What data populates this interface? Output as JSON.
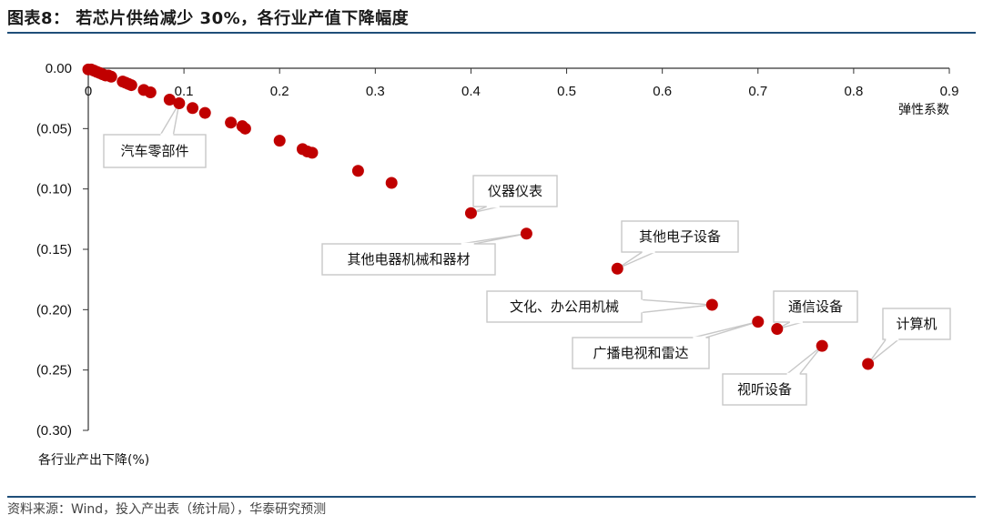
{
  "header": {
    "title": "图表8：  若芯片供给减少 30%，各行业产值下降幅度"
  },
  "footer": {
    "source": "资料来源：Wind，投入产出表（统计局），华泰研究预测"
  },
  "chart_data": {
    "type": "scatter",
    "title": "",
    "xlabel": "弹性系数",
    "ylabel": "各行业产出下降(%)",
    "xlim": [
      0,
      0.9
    ],
    "ylim": [
      -0.3,
      0.0
    ],
    "x_ticks": [
      "0",
      "0.1",
      "0.2",
      "0.3",
      "0.4",
      "0.5",
      "0.6",
      "0.7",
      "0.8",
      "0.9"
    ],
    "y_ticks": [
      "0.00",
      "(0.05)",
      "(0.10)",
      "(0.15)",
      "(0.20)",
      "(0.25)",
      "(0.30)"
    ],
    "grid": false,
    "marker_color": "#c00000",
    "points": [
      {
        "x": 0.0,
        "y": -0.001
      },
      {
        "x": 0.003,
        "y": -0.001
      },
      {
        "x": 0.006,
        "y": -0.002
      },
      {
        "x": 0.009,
        "y": -0.003
      },
      {
        "x": 0.012,
        "y": -0.004
      },
      {
        "x": 0.015,
        "y": -0.005
      },
      {
        "x": 0.018,
        "y": -0.006
      },
      {
        "x": 0.021,
        "y": -0.006
      },
      {
        "x": 0.024,
        "y": -0.007
      },
      {
        "x": 0.036,
        "y": -0.011
      },
      {
        "x": 0.039,
        "y": -0.012
      },
      {
        "x": 0.042,
        "y": -0.013
      },
      {
        "x": 0.045,
        "y": -0.014
      },
      {
        "x": 0.058,
        "y": -0.018
      },
      {
        "x": 0.065,
        "y": -0.02
      },
      {
        "x": 0.085,
        "y": -0.026
      },
      {
        "x": 0.095,
        "y": -0.029
      },
      {
        "x": 0.109,
        "y": -0.033
      },
      {
        "x": 0.122,
        "y": -0.037
      },
      {
        "x": 0.149,
        "y": -0.045
      },
      {
        "x": 0.161,
        "y": -0.048
      },
      {
        "x": 0.164,
        "y": -0.05
      },
      {
        "x": 0.2,
        "y": -0.06
      },
      {
        "x": 0.224,
        "y": -0.067
      },
      {
        "x": 0.229,
        "y": -0.069
      },
      {
        "x": 0.234,
        "y": -0.07
      },
      {
        "x": 0.282,
        "y": -0.085
      },
      {
        "x": 0.317,
        "y": -0.095
      },
      {
        "x": 0.4,
        "y": -0.12
      },
      {
        "x": 0.458,
        "y": -0.137
      },
      {
        "x": 0.553,
        "y": -0.166
      },
      {
        "x": 0.652,
        "y": -0.196
      },
      {
        "x": 0.7,
        "y": -0.21
      },
      {
        "x": 0.72,
        "y": -0.216
      },
      {
        "x": 0.767,
        "y": -0.23
      },
      {
        "x": 0.815,
        "y": -0.245
      }
    ],
    "annotations": [
      {
        "text": "汽车零部件",
        "x": 0.095,
        "y": -0.029
      },
      {
        "text": "仪器仪表",
        "x": 0.4,
        "y": -0.12
      },
      {
        "text": "其他电器机械和器材",
        "x": 0.458,
        "y": -0.137
      },
      {
        "text": "其他电子设备",
        "x": 0.553,
        "y": -0.166
      },
      {
        "text": "文化、办公用机械",
        "x": 0.652,
        "y": -0.196
      },
      {
        "text": "通信设备",
        "x": 0.72,
        "y": -0.216
      },
      {
        "text": "广播电视和雷达",
        "x": 0.7,
        "y": -0.21
      },
      {
        "text": "视听设备",
        "x": 0.767,
        "y": -0.23
      },
      {
        "text": "计算机",
        "x": 0.815,
        "y": -0.245
      }
    ]
  }
}
